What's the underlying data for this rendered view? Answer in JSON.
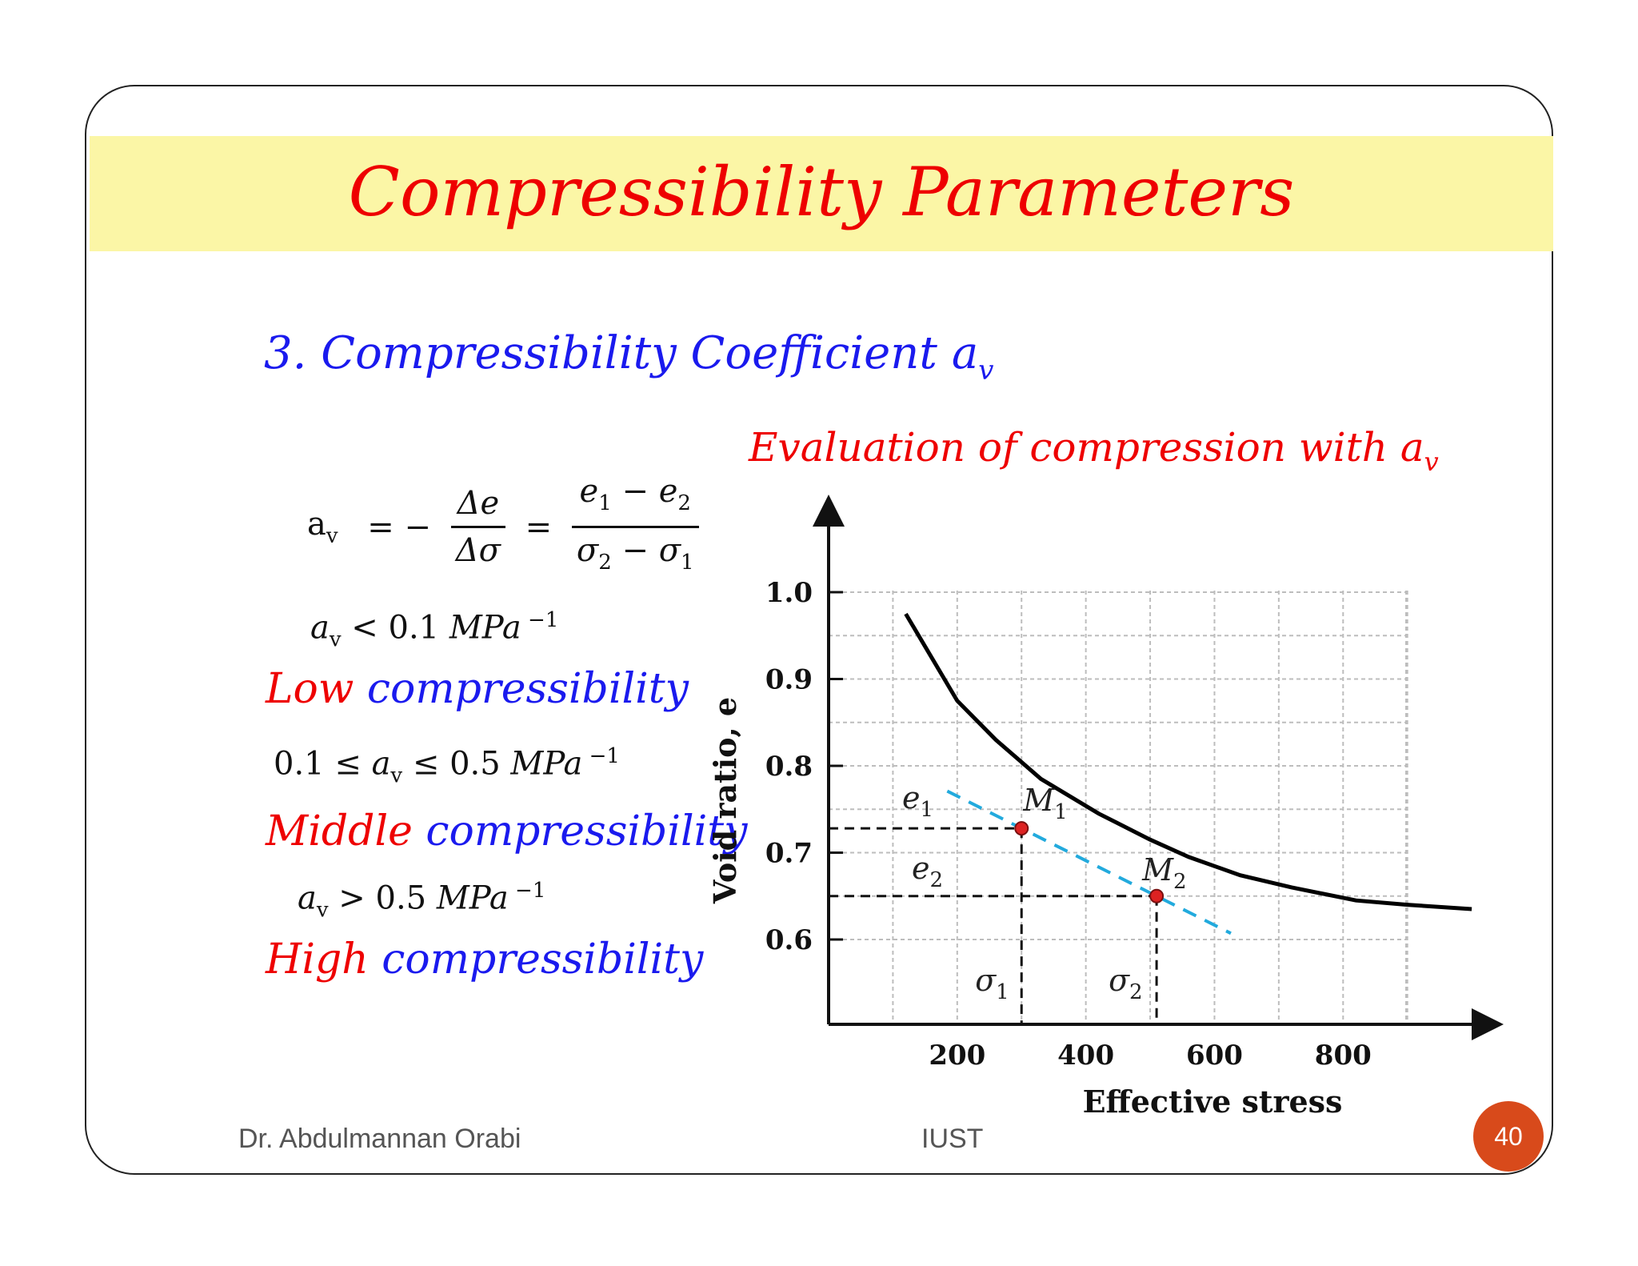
{
  "slide": {
    "title": "Compressibility Parameters",
    "subtitle": "3. Compressibility Coefficient",
    "subtitle_symbol": "a",
    "subtitle_symbol_sub": "v",
    "eval_heading": "Evaluation  of   compression with",
    "eval_symbol": "a",
    "eval_symbol_sub": "v"
  },
  "formula": {
    "lhs": "a",
    "lhs_sub": "v",
    "eq1": "= −",
    "num1": "Δe",
    "den1": "Δσ",
    "eq2": "=",
    "num2_a": "e",
    "num2_a_sub": "1",
    "num2_op": " − ",
    "num2_b": "e",
    "num2_b_sub": "2",
    "den2_a": "σ",
    "den2_a_sub": "2",
    "den2_op": " − ",
    "den2_b": "σ",
    "den2_b_sub": "1"
  },
  "classes": [
    {
      "cond_pre": "",
      "cond_var": "a",
      "cond_sub": "v",
      "cond_post": " < 0.1 ",
      "unit": "MPa",
      "exp": " −1",
      "word1": "Low",
      "word2": "compressibility"
    },
    {
      "cond_pre": "0.1 ≤ ",
      "cond_var": "a",
      "cond_sub": "v",
      "cond_post": " ≤ 0.5 ",
      "unit": "MPa",
      "exp": " −1",
      "word1": "Middle",
      "word2": "compressibility"
    },
    {
      "cond_pre": "",
      "cond_var": "a",
      "cond_sub": "v",
      "cond_post": " > 0.5 ",
      "unit": "MPa",
      "exp": " −1",
      "word1": "High",
      "word2": "compressibility"
    }
  ],
  "chart_data": {
    "type": "line",
    "xlabel": "Effective stress",
    "ylabel": "Void ratio, e",
    "x_ticks": [
      200,
      400,
      600,
      800
    ],
    "y_ticks": [
      0.6,
      0.7,
      0.8,
      0.9,
      1.0
    ],
    "y_tick_labels": [
      "0.6",
      "0.7",
      "0.8",
      "0.9",
      "1.0"
    ],
    "x_tick_labels": [
      "200",
      "400",
      "600",
      "800"
    ],
    "xlim": [
      0,
      1000
    ],
    "ylim": [
      0.5,
      1.1
    ],
    "grid": true,
    "series": [
      {
        "x": [
          120,
          200,
          260,
          330,
          420,
          500,
          560,
          640,
          720,
          820,
          900,
          1000
        ],
        "y": [
          0.975,
          0.875,
          0.83,
          0.785,
          0.745,
          0.715,
          0.695,
          0.674,
          0.66,
          0.645,
          0.64,
          0.635
        ]
      }
    ],
    "points": [
      {
        "label": "M",
        "label_sub": "1",
        "x": 300,
        "y": 0.728
      },
      {
        "label": "M",
        "label_sub": "2",
        "x": 510,
        "y": 0.65
      }
    ],
    "annotations": [
      {
        "label": "e",
        "label_sub": "1"
      },
      {
        "label": "e",
        "label_sub": "2"
      },
      {
        "label": "σ",
        "label_sub": "1"
      },
      {
        "label": "σ",
        "label_sub": "2"
      }
    ],
    "colors": {
      "curve": "#000000",
      "tangent": "#22aadd",
      "point": "#dd2222",
      "grid": "#bdbdbd"
    }
  },
  "footer": {
    "author": "Dr. Abdulmannan Orabi",
    "institution": "IUST",
    "page": "40"
  }
}
